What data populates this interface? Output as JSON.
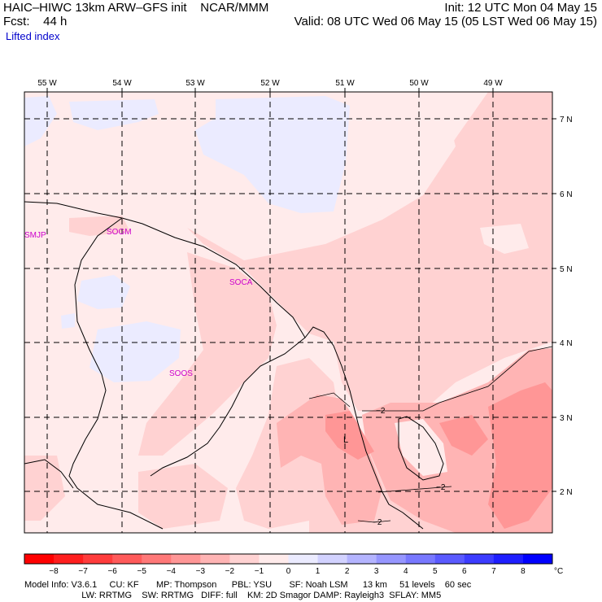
{
  "header": {
    "title_left": "HAIC–HIWC 13km ARW–GFS init    NCAR/MMM",
    "fcst": "Fcst:    44 h",
    "field": "Lifted index",
    "init": "Init: 12 UTC Mon 04 May 15",
    "valid": "Valid: 08 UTC Wed 06 May 15 (05 LST Wed 06 May 15)"
  },
  "map": {
    "lon_labels": [
      "55 W",
      "54 W",
      "53 W",
      "52 W",
      "51 W",
      "50 W",
      "49 W"
    ],
    "lat_labels": [
      "7 N",
      "6 N",
      "5 N",
      "4 N",
      "3 N",
      "2 N"
    ],
    "stations": [
      "SMJP",
      "SOGM",
      "SOCA",
      "SOOS"
    ],
    "contour_labels": [
      "−2",
      "−2",
      "−2"
    ],
    "low_marker": "L"
  },
  "colorbar": {
    "ticks": [
      "−8",
      "−7",
      "−6",
      "−5",
      "−4",
      "−3",
      "−2",
      "−1",
      "0",
      "1",
      "2",
      "3",
      "4",
      "5",
      "6",
      "7",
      "8"
    ],
    "unit": "°C",
    "colors": [
      "#ff0000",
      "#ff1e1e",
      "#ff3c3c",
      "#ff5a5a",
      "#ff7878",
      "#ff9696",
      "#ffb4b4",
      "#ffd2d2",
      "#ffebeb",
      "#ebebff",
      "#d2d2ff",
      "#b4b4ff",
      "#9696ff",
      "#7878ff",
      "#5a5aff",
      "#3c3cff",
      "#1e1eff",
      "#0000ff"
    ]
  },
  "footer": {
    "line1": "Model Info: V3.6.1     CU: KF       MP: Thompson      PBL: YSU       SF: Noah LSM      13 km     51 levels    60 sec",
    "line2": "                       LW: RRTMG    SW: RRTMG   DIFF: full    KM: 2D Smagor DAMP: Rayleigh3  SFLAY: MM5"
  }
}
